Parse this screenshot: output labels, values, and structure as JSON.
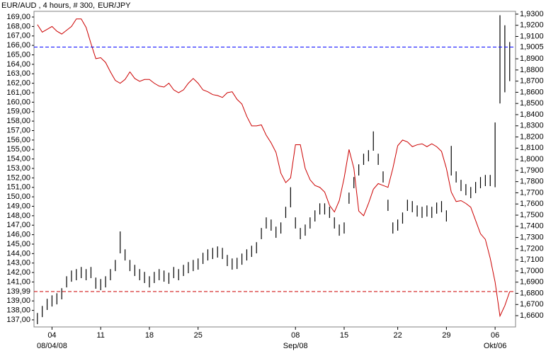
{
  "chart_data": {
    "type": "combo",
    "title": "EUR/AUD , 4 hours, # 300,",
    "x": [
      0,
      1,
      2,
      3,
      4,
      5,
      6,
      7,
      8,
      9,
      10,
      11,
      12,
      13,
      14,
      15,
      16,
      17,
      18,
      19,
      20,
      21,
      22,
      23,
      24,
      25,
      26,
      27,
      28,
      29,
      30,
      31,
      32,
      33,
      34,
      35,
      36,
      37,
      38,
      39,
      40,
      41,
      42,
      43,
      44,
      45,
      46,
      47,
      48,
      49,
      50,
      51,
      52,
      53,
      54,
      55,
      56,
      57,
      58,
      59,
      60,
      61,
      62,
      63,
      64,
      65,
      66,
      67,
      68,
      69,
      70,
      71,
      72,
      73,
      74,
      75,
      76,
      77,
      78,
      79,
      80,
      81,
      82,
      83,
      84,
      85,
      86,
      87,
      88,
      89,
      90,
      91,
      92,
      93,
      94,
      95,
      96,
      97
    ],
    "xlim": [
      -0.7,
      98.2
    ],
    "xticks": [
      {
        "value": 3,
        "label": "04"
      },
      {
        "value": 13,
        "label": "11"
      },
      {
        "value": 23,
        "label": "18"
      },
      {
        "value": 33,
        "label": "25"
      },
      {
        "value": 53,
        "label": "08"
      },
      {
        "value": 63,
        "label": "15"
      },
      {
        "value": 74,
        "label": "22"
      },
      {
        "value": 84,
        "label": "29"
      },
      {
        "value": 94,
        "label": "06"
      }
    ],
    "xticks_secondary": [
      {
        "value": 3,
        "label": "08/04/08"
      },
      {
        "value": 53,
        "label": "Sep/08"
      },
      {
        "value": 94,
        "label": "Okt/06"
      }
    ],
    "ylim": [
      136.25,
      169.6
    ],
    "yticks": [
      {
        "value": 137,
        "label": "137,00"
      },
      {
        "value": 138,
        "label": "138,00"
      },
      {
        "value": 139,
        "label": "139,00"
      },
      {
        "value": 141,
        "label": "141,00"
      },
      {
        "value": 142,
        "label": "142,00"
      },
      {
        "value": 143,
        "label": "143,00"
      },
      {
        "value": 144,
        "label": "144,00"
      },
      {
        "value": 145,
        "label": "145,00"
      },
      {
        "value": 146,
        "label": "146,00"
      },
      {
        "value": 147,
        "label": "147,00"
      },
      {
        "value": 148,
        "label": "148,00"
      },
      {
        "value": 149,
        "label": "149,00"
      },
      {
        "value": 150,
        "label": "150,00"
      },
      {
        "value": 151,
        "label": "151,00"
      },
      {
        "value": 152,
        "label": "152,00"
      },
      {
        "value": 153,
        "label": "153,00"
      },
      {
        "value": 154,
        "label": "154,00"
      },
      {
        "value": 155,
        "label": "155,00"
      },
      {
        "value": 156,
        "label": "156,00"
      },
      {
        "value": 157,
        "label": "157,00"
      },
      {
        "value": 158,
        "label": "158,00"
      },
      {
        "value": 159,
        "label": "159,00"
      },
      {
        "value": 160,
        "label": "160,00"
      },
      {
        "value": 161,
        "label": "161,00"
      },
      {
        "value": 162,
        "label": "162,00"
      },
      {
        "value": 163,
        "label": "163,00"
      },
      {
        "value": 164,
        "label": "164,00"
      },
      {
        "value": 165,
        "label": "165,00"
      },
      {
        "value": 166,
        "label": "166,00"
      },
      {
        "value": 167,
        "label": "167,00"
      },
      {
        "value": 168,
        "label": "168,00"
      },
      {
        "value": 169,
        "label": "169,00"
      }
    ],
    "y2lim": [
      1.6499,
      1.9325
    ],
    "y2ticks": [
      {
        "value": 1.66,
        "label": "1,6600"
      },
      {
        "value": 1.67,
        "label": "1,6700"
      },
      {
        "value": 1.68,
        "label": "1,6800"
      },
      {
        "value": 1.69,
        "label": "1,6900"
      },
      {
        "value": 1.7,
        "label": "1,7000"
      },
      {
        "value": 1.71,
        "label": "1,7100"
      },
      {
        "value": 1.72,
        "label": "1,7200"
      },
      {
        "value": 1.73,
        "label": "1,7300"
      },
      {
        "value": 1.74,
        "label": "1,7400"
      },
      {
        "value": 1.75,
        "label": "1,7500"
      },
      {
        "value": 1.76,
        "label": "1,7600"
      },
      {
        "value": 1.77,
        "label": "1,7700"
      },
      {
        "value": 1.78,
        "label": "1,7800"
      },
      {
        "value": 1.79,
        "label": "1,7900"
      },
      {
        "value": 1.8,
        "label": "1,8000"
      },
      {
        "value": 1.81,
        "label": "1,8100"
      },
      {
        "value": 1.82,
        "label": "1,8200"
      },
      {
        "value": 1.83,
        "label": "1,8300"
      },
      {
        "value": 1.84,
        "label": "1,8400"
      },
      {
        "value": 1.85,
        "label": "1,8500"
      },
      {
        "value": 1.86,
        "label": "1,8600"
      },
      {
        "value": 1.87,
        "label": "1,8700"
      },
      {
        "value": 1.88,
        "label": "1,8800"
      },
      {
        "value": 1.89,
        "label": "1,8900"
      },
      {
        "value": 1.91,
        "label": "1,9100"
      },
      {
        "value": 1.92,
        "label": "1,9200"
      },
      {
        "value": 1.93,
        "label": "1,9300"
      }
    ],
    "grid": false,
    "series": [
      {
        "name": "EUR/AUD",
        "type": "hilo",
        "axis": "y2",
        "color": "#000000",
        "high": [
          1.6624,
          1.6687,
          1.6751,
          1.6782,
          1.6801,
          1.6846,
          1.6953,
          1.7004,
          1.7017,
          1.7036,
          1.7017,
          1.7036,
          1.6941,
          1.6928,
          1.6953,
          1.7017,
          1.7099,
          1.7354,
          1.7194,
          1.7099,
          1.7055,
          1.7017,
          1.6992,
          1.6953,
          1.6992,
          1.7017,
          1.7004,
          1.6985,
          1.7036,
          1.7017,
          1.7055,
          1.708,
          1.7099,
          1.7112,
          1.7163,
          1.7194,
          1.7207,
          1.722,
          1.7207,
          1.7144,
          1.7112,
          1.7118,
          1.7156,
          1.7194,
          1.7226,
          1.7258,
          1.7385,
          1.748,
          1.7461,
          1.7397,
          1.7435,
          1.7575,
          1.775,
          1.748,
          1.7385,
          1.7416,
          1.748,
          1.7543,
          1.7606,
          1.7606,
          1.7575,
          1.748,
          1.7416,
          1.7435,
          1.7702,
          1.7841,
          1.7955,
          1.805,
          1.8082,
          1.825,
          1.805,
          1.7892,
          1.7638,
          1.7435,
          1.7461,
          1.7524,
          1.7638,
          1.7626,
          1.7587,
          1.7575,
          1.7587,
          1.7575,
          1.7613,
          1.7626,
          1.7543,
          1.812,
          1.7892,
          1.7816,
          1.7778,
          1.7752,
          1.7797,
          1.7841,
          1.786,
          1.786,
          1.833,
          1.929,
          1.92,
          1.905
        ],
        "low": [
          1.6524,
          1.6587,
          1.6651,
          1.6682,
          1.6701,
          1.6746,
          1.6853,
          1.6904,
          1.6917,
          1.6936,
          1.6917,
          1.6936,
          1.6841,
          1.6828,
          1.6853,
          1.6917,
          1.6999,
          1.7158,
          1.7094,
          1.6999,
          1.6955,
          1.6917,
          1.6892,
          1.6853,
          1.6892,
          1.6917,
          1.6904,
          1.6885,
          1.6936,
          1.6917,
          1.6955,
          1.698,
          1.6999,
          1.7012,
          1.7063,
          1.7094,
          1.7107,
          1.712,
          1.7107,
          1.7044,
          1.7012,
          1.7018,
          1.7056,
          1.7094,
          1.7126,
          1.7158,
          1.7285,
          1.738,
          1.7361,
          1.7297,
          1.7335,
          1.7475,
          1.757,
          1.738,
          1.7285,
          1.7316,
          1.738,
          1.7443,
          1.7506,
          1.7506,
          1.7475,
          1.738,
          1.7316,
          1.7335,
          1.7602,
          1.7741,
          1.7855,
          1.795,
          1.7982,
          1.8077,
          1.795,
          1.7792,
          1.7538,
          1.7335,
          1.7361,
          1.7424,
          1.7538,
          1.7526,
          1.7487,
          1.7475,
          1.7487,
          1.7475,
          1.7513,
          1.7526,
          1.7443,
          1.7855,
          1.7792,
          1.7716,
          1.7678,
          1.7652,
          1.7697,
          1.7741,
          1.776,
          1.776,
          1.775,
          1.85,
          1.86,
          1.87
        ]
      },
      {
        "name": "EUR/JPY",
        "type": "line",
        "axis": "y",
        "color": "#cc0000",
        "values": [
          168.2,
          167.4,
          167.7,
          168.0,
          167.5,
          167.2,
          167.6,
          168.0,
          168.8,
          168.8,
          167.9,
          166.2,
          164.6,
          164.7,
          164.2,
          163.2,
          162.3,
          162.0,
          162.4,
          163.2,
          162.5,
          162.2,
          162.4,
          162.4,
          162.0,
          161.7,
          161.6,
          162.0,
          161.3,
          161.0,
          161.3,
          162.0,
          162.5,
          162.0,
          161.3,
          161.1,
          160.8,
          160.7,
          160.5,
          161.0,
          161.1,
          160.3,
          159.8,
          158.5,
          157.5,
          157.5,
          157.6,
          156.5,
          155.7,
          154.7,
          152.5,
          151.5,
          152.0,
          155.5,
          155.5,
          153.0,
          151.8,
          151.2,
          151.0,
          150.5,
          149.1,
          148.4,
          149.6,
          152.0,
          155.0,
          153.0,
          148.5,
          148.0,
          149.3,
          150.8,
          151.4,
          151.2,
          151.0,
          153.0,
          155.4,
          156.0,
          155.8,
          155.3,
          155.5,
          155.6,
          155.3,
          155.6,
          155.3,
          154.8,
          153.0,
          150.5,
          149.5,
          149.6,
          149.3,
          148.9,
          147.5,
          146.1,
          145.5,
          143.5,
          141.0,
          137.4,
          138.5,
          139.99
        ]
      }
    ],
    "reference_lines": [
      {
        "value": 139.99,
        "label": "139,99",
        "axis": "y",
        "color": "#cc0000"
      },
      {
        "value": 1.9005,
        "label": "1,9005",
        "axis": "y2",
        "color": "#0000ff"
      }
    ]
  }
}
